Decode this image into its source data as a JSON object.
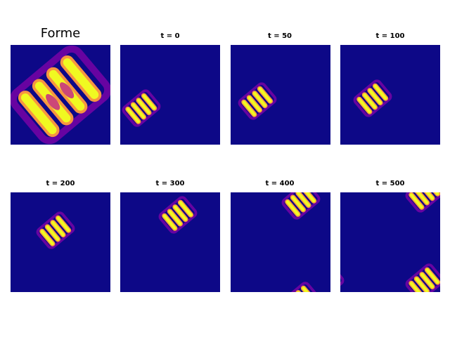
{
  "figure": {
    "background": "#ffffff",
    "colormap": [
      "#0d0887",
      "#7e03a8",
      "#cc4778",
      "#f89540",
      "#f0f921"
    ]
  },
  "panels": [
    {
      "title": "Forme",
      "shape": "pattern-zoomed"
    },
    {
      "title": "t = 0",
      "shape": "pattern"
    },
    {
      "title": "t = 50",
      "shape": "pattern"
    },
    {
      "title": "t = 100",
      "shape": "pattern"
    },
    {
      "title": "t = 200",
      "shape": "pattern"
    },
    {
      "title": "t = 300",
      "shape": "pattern"
    },
    {
      "title": "t = 400",
      "shape": "pattern-wrapped"
    },
    {
      "title": "t = 500",
      "shape": "pattern-wrapped"
    }
  ]
}
